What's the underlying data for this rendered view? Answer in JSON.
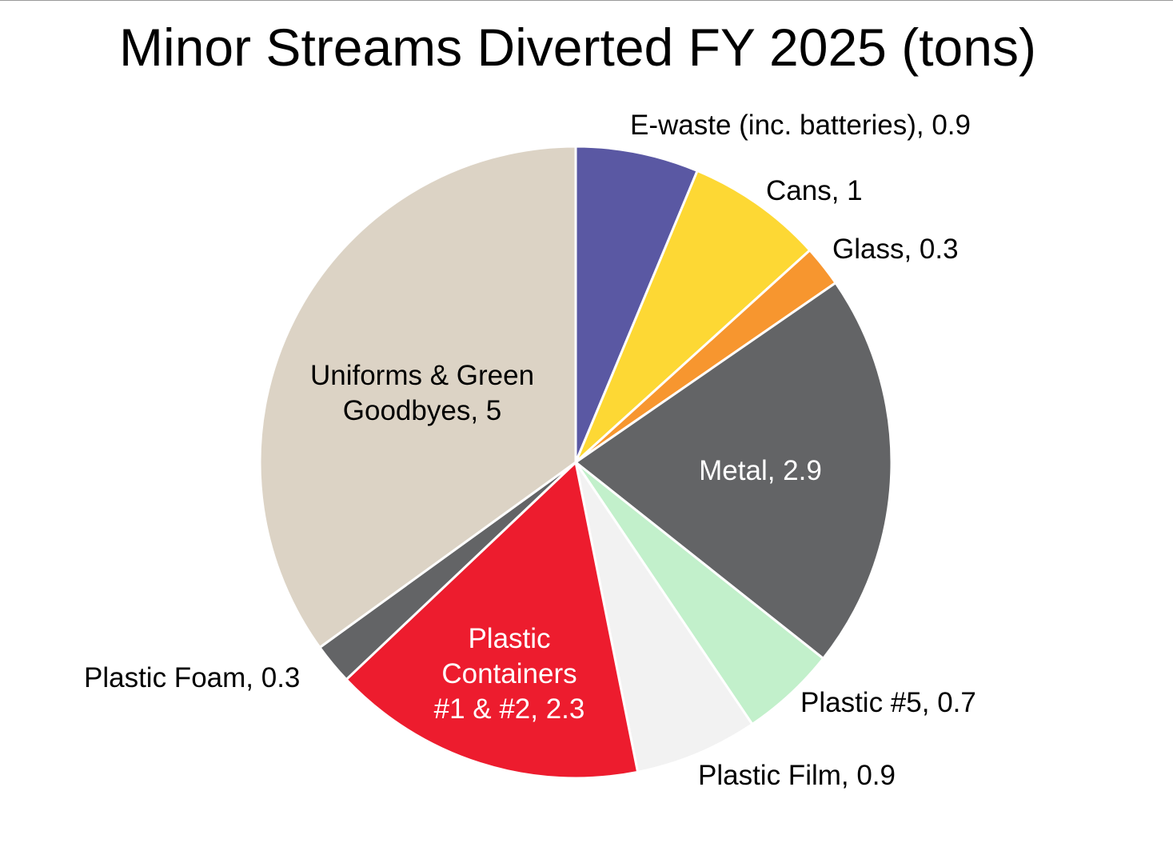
{
  "chart_data": {
    "type": "pie",
    "title": "Minor Streams Diverted FY 2025 (tons)",
    "slices": [
      {
        "label": "E-waste (inc. batteries)",
        "value": 0.9,
        "data_label": "E-waste (inc. batteries), 0.9",
        "color": "#5a58a3",
        "label_color": "#000000"
      },
      {
        "label": "Cans",
        "value": 1,
        "data_label": "Cans, 1",
        "color": "#fdd834",
        "label_color": "#000000"
      },
      {
        "label": "Glass",
        "value": 0.3,
        "data_label": "Glass, 0.3",
        "color": "#f7962f",
        "label_color": "#000000"
      },
      {
        "label": "Metal",
        "value": 2.9,
        "data_label": "Metal, 2.9",
        "color": "#636466",
        "label_color": "#ffffff"
      },
      {
        "label": "Plastic #5",
        "value": 0.7,
        "data_label": "Plastic #5, 0.7",
        "color": "#c2f0cb",
        "label_color": "#000000"
      },
      {
        "label": "Plastic Film",
        "value": 0.9,
        "data_label": "Plastic Film, 0.9",
        "color": "#f2f2f2",
        "label_color": "#000000"
      },
      {
        "label": "Plastic Containers #1 & #2",
        "value": 2.3,
        "data_label_lines": [
          "Plastic",
          "Containers",
          "#1 & #2, 2.3"
        ],
        "color": "#ed1c2e",
        "label_color": "#ffffff"
      },
      {
        "label": "Plastic Foam",
        "value": 0.3,
        "data_label": "Plastic Foam, 0.3",
        "color": "#636466",
        "label_color": "#000000"
      },
      {
        "label": "Uniforms & Green Goodbyes",
        "value": 5,
        "data_label_lines": [
          "Uniforms & Green",
          "Goodbyes, 5"
        ],
        "color": "#dcd3c5",
        "label_color": "#000000"
      }
    ],
    "start_direction": "12 o'clock",
    "direction": "clockwise",
    "legend": "none"
  }
}
